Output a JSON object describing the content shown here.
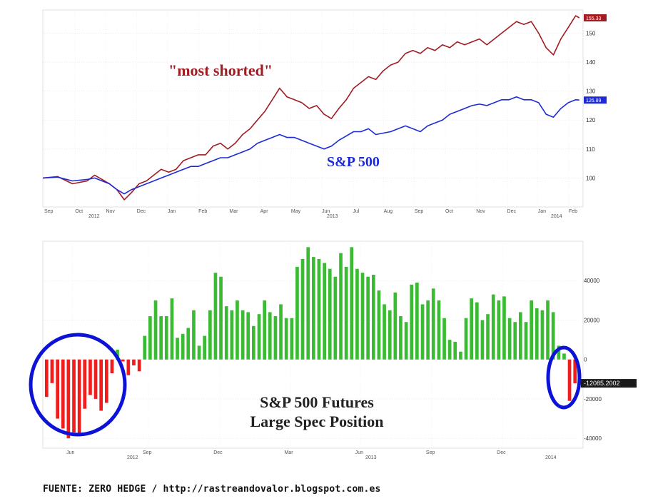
{
  "chart_data": [
    {
      "type": "line",
      "title": "",
      "xlabel": "",
      "ylabel": "",
      "x_tick_labels": [
        "Sep",
        "Oct",
        "Nov",
        "Dec",
        "Jan",
        "Feb",
        "Mar",
        "Apr",
        "May",
        "Jun",
        "Jul",
        "Aug",
        "Sep",
        "Oct",
        "Nov",
        "Dec",
        "Jan",
        "Feb"
      ],
      "x_year_labels": [
        "2012",
        "2013",
        "2014"
      ],
      "ylim": [
        90,
        158
      ],
      "y_ticks": [
        100,
        110,
        120,
        130,
        140,
        150
      ],
      "grid": true,
      "annotations": [
        {
          "text": "\"most shorted\"",
          "color": "#a01c22"
        },
        {
          "text": "S&P 500",
          "color": "#1c2bd6"
        }
      ],
      "last_value_labels": [
        {
          "series": "most shorted",
          "text": "155.33",
          "color": "#a01c22"
        },
        {
          "series": "S&P 500",
          "text": "126.89",
          "color": "#1c2bd6"
        }
      ],
      "series": [
        {
          "name": "\"most shorted\"",
          "color": "#a01c22",
          "values": [
            [
              0,
              100
            ],
            [
              2,
              100.5
            ],
            [
              4,
              98
            ],
            [
              6,
              99
            ],
            [
              7,
              101
            ],
            [
              8,
              99.5
            ],
            [
              9,
              98
            ],
            [
              10,
              96
            ],
            [
              11,
              92.5
            ],
            [
              12,
              95
            ],
            [
              13,
              98
            ],
            [
              14,
              99
            ],
            [
              15,
              101
            ],
            [
              16,
              103
            ],
            [
              17,
              102
            ],
            [
              18,
              103
            ],
            [
              19,
              106
            ],
            [
              20,
              107
            ],
            [
              21,
              108
            ],
            [
              22,
              108
            ],
            [
              23,
              111
            ],
            [
              24,
              112
            ],
            [
              25,
              110
            ],
            [
              26,
              112
            ],
            [
              27,
              115
            ],
            [
              28,
              117
            ],
            [
              29,
              120
            ],
            [
              30,
              123
            ],
            [
              31,
              127
            ],
            [
              32,
              131
            ],
            [
              33,
              128
            ],
            [
              34,
              127
            ],
            [
              35,
              126
            ],
            [
              36,
              124
            ],
            [
              37,
              125
            ],
            [
              38,
              122
            ],
            [
              39,
              120.5
            ],
            [
              40,
              124
            ],
            [
              41,
              127
            ],
            [
              42,
              131
            ],
            [
              43,
              133
            ],
            [
              44,
              135
            ],
            [
              45,
              134
            ],
            [
              46,
              137
            ],
            [
              47,
              139
            ],
            [
              48,
              140
            ],
            [
              49,
              143
            ],
            [
              50,
              144
            ],
            [
              51,
              143
            ],
            [
              52,
              145
            ],
            [
              53,
              144
            ],
            [
              54,
              146
            ],
            [
              55,
              145
            ],
            [
              56,
              147
            ],
            [
              57,
              146
            ],
            [
              58,
              147
            ],
            [
              59,
              148
            ],
            [
              60,
              146
            ],
            [
              61,
              148
            ],
            [
              62,
              150
            ],
            [
              63,
              152
            ],
            [
              64,
              154
            ],
            [
              65,
              153
            ],
            [
              66,
              154
            ],
            [
              67,
              150
            ],
            [
              68,
              145
            ],
            [
              69,
              142.5
            ],
            [
              70,
              148
            ],
            [
              71,
              152
            ],
            [
              72,
              156
            ],
            [
              72.5,
              155.3
            ]
          ]
        },
        {
          "name": "S&P 500",
          "color": "#1c2bd6",
          "values": [
            [
              0,
              100
            ],
            [
              2,
              100.3
            ],
            [
              4,
              99
            ],
            [
              6,
              99.5
            ],
            [
              7,
              100
            ],
            [
              8,
              99
            ],
            [
              9,
              98
            ],
            [
              10,
              96
            ],
            [
              11,
              94.5
            ],
            [
              12,
              96
            ],
            [
              13,
              97
            ],
            [
              14,
              98
            ],
            [
              15,
              99
            ],
            [
              16,
              100
            ],
            [
              17,
              101
            ],
            [
              18,
              102
            ],
            [
              19,
              103
            ],
            [
              20,
              104
            ],
            [
              21,
              104
            ],
            [
              22,
              105
            ],
            [
              23,
              106
            ],
            [
              24,
              107
            ],
            [
              25,
              107
            ],
            [
              26,
              108
            ],
            [
              27,
              109
            ],
            [
              28,
              110
            ],
            [
              29,
              112
            ],
            [
              30,
              113
            ],
            [
              31,
              114
            ],
            [
              32,
              115
            ],
            [
              33,
              114
            ],
            [
              34,
              114
            ],
            [
              35,
              113
            ],
            [
              36,
              112
            ],
            [
              37,
              111
            ],
            [
              38,
              110
            ],
            [
              39,
              111
            ],
            [
              40,
              113
            ],
            [
              41,
              114.5
            ],
            [
              42,
              116
            ],
            [
              43,
              116
            ],
            [
              44,
              117
            ],
            [
              45,
              115
            ],
            [
              46,
              115.5
            ],
            [
              47,
              116
            ],
            [
              48,
              117
            ],
            [
              49,
              118
            ],
            [
              50,
              117
            ],
            [
              51,
              116
            ],
            [
              52,
              118
            ],
            [
              53,
              119
            ],
            [
              54,
              120
            ],
            [
              55,
              122
            ],
            [
              56,
              123
            ],
            [
              57,
              124
            ],
            [
              58,
              125
            ],
            [
              59,
              125.5
            ],
            [
              60,
              125
            ],
            [
              61,
              126
            ],
            [
              62,
              127
            ],
            [
              63,
              127
            ],
            [
              64,
              128
            ],
            [
              65,
              127
            ],
            [
              66,
              127
            ],
            [
              67,
              126
            ],
            [
              68,
              122
            ],
            [
              69,
              121
            ],
            [
              70,
              124
            ],
            [
              71,
              126
            ],
            [
              72,
              127
            ],
            [
              72.5,
              126.9
            ]
          ]
        }
      ]
    },
    {
      "type": "bar",
      "title": "S&P 500 Futures Large Spec Position",
      "title_lines": [
        "S&P 500 Futures",
        "Large Spec Position"
      ],
      "xlabel": "",
      "ylabel": "",
      "x_tick_labels": [
        "Jun",
        "Sep",
        "Dec",
        "Mar",
        "Jun",
        "Sep",
        "Dec"
      ],
      "x_year_labels": [
        "2012",
        "2013",
        "2014"
      ],
      "ylim": [
        -45000,
        60000
      ],
      "y_ticks": [
        -40000,
        -20000,
        0,
        20000,
        40000
      ],
      "grid": true,
      "last_value_label": {
        "text": "-12085.2002"
      },
      "positive_color": "#3bbb33",
      "negative_color": "#f11c1c",
      "highlight_color": "#0d13d6",
      "values": [
        -19000,
        -12000,
        -30000,
        -35000,
        -40000,
        -37000,
        -38000,
        -25000,
        -18000,
        -20000,
        -26000,
        -22000,
        -7000,
        5000,
        -1000,
        -8000,
        -3000,
        -6000,
        12000,
        22000,
        30000,
        22000,
        22000,
        31000,
        11000,
        13000,
        16000,
        25000,
        7000,
        12000,
        25000,
        44000,
        42000,
        27000,
        25000,
        30000,
        25000,
        24000,
        17000,
        23000,
        30000,
        24000,
        22000,
        28000,
        21000,
        21000,
        47000,
        51000,
        57000,
        52000,
        51000,
        49000,
        46000,
        42000,
        54000,
        47000,
        57000,
        46000,
        44000,
        42000,
        43000,
        35000,
        28000,
        25000,
        34000,
        22000,
        19000,
        38000,
        39000,
        28000,
        30000,
        36000,
        30000,
        21000,
        10000,
        9000,
        4000,
        21000,
        31000,
        29000,
        20000,
        23000,
        33000,
        30000,
        32000,
        21000,
        19000,
        24000,
        19000,
        30000,
        26000,
        25000,
        30000,
        24000,
        7000,
        3000,
        -21000,
        -12085
      ]
    }
  ],
  "source_text": "FUENTE: ZERO HEDGE / http://rastreandovalor.blogspot.com.es"
}
